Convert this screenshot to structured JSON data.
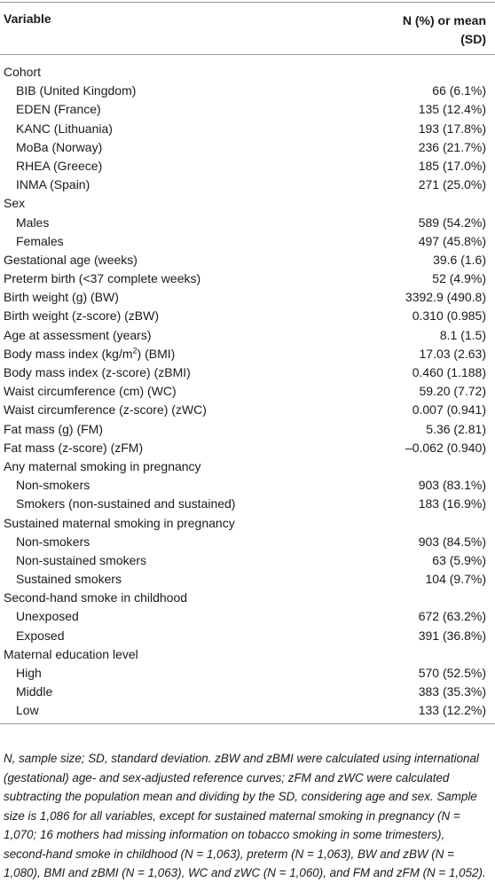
{
  "header": {
    "variable": "Variable",
    "value": "N (%) or mean (SD)"
  },
  "rows": [
    {
      "label": "Cohort",
      "rows": [
        {
          "label": "BIB (United Kingdom)",
          "value": "66 (6.1%)"
        },
        {
          "label": "EDEN (France)",
          "value": "135 (12.4%)"
        },
        {
          "label": "KANC (Lithuania)",
          "value": "193 (17.8%)"
        },
        {
          "label": "MoBa (Norway)",
          "value": "236 (21.7%)"
        },
        {
          "label": "RHEA (Greece)",
          "value": "185 (17.0%)"
        },
        {
          "label": "INMA (Spain)",
          "value": "271 (25.0%)"
        }
      ]
    },
    {
      "label": "Sex",
      "rows": [
        {
          "label": "Males",
          "value": "589 (54.2%)"
        },
        {
          "label": "Females",
          "value": "497 (45.8%)"
        }
      ]
    },
    {
      "label": "Gestational age (weeks)",
      "value": "39.6 (1.6)"
    },
    {
      "label": "Preterm birth (<37 complete weeks)",
      "value": "52 (4.9%)"
    },
    {
      "label": "Birth weight (g) (BW)",
      "value": "3392.9 (490.8)"
    },
    {
      "label": "Birth weight (z-score) (zBW)",
      "value": "0.310 (0.985)"
    },
    {
      "label": "Age at assessment (years)",
      "value": "8.1 (1.5)"
    },
    {
      "label": "Body mass index (kg/m",
      "sup": "2",
      "after": ") (BMI)",
      "value": "17.03 (2.63)"
    },
    {
      "label": "Body mass index (z-score) (zBMI)",
      "value": "0.460 (1.188)"
    },
    {
      "label": "Waist circumference (cm) (WC)",
      "value": "59.20 (7.72)"
    },
    {
      "label": "Waist circumference (z-score) (zWC)",
      "value": "0.007 (0.941)"
    },
    {
      "label": "Fat mass (g) (FM)",
      "value": "5.36 (2.81)"
    },
    {
      "label": "Fat mass (z-score) (zFM)",
      "value": "–0.062 (0.940)"
    },
    {
      "label": "Any maternal smoking in pregnancy",
      "rows": [
        {
          "label": "Non-smokers",
          "value": "903 (83.1%)"
        },
        {
          "label": "Smokers (non-sustained and sustained)",
          "value": "183 (16.9%)"
        }
      ]
    },
    {
      "label": "Sustained maternal smoking in pregnancy",
      "rows": [
        {
          "label": "Non-smokers",
          "value": "903 (84.5%)"
        },
        {
          "label": "Non-sustained smokers",
          "value": "63 (5.9%)"
        },
        {
          "label": "Sustained smokers",
          "value": "104 (9.7%)"
        }
      ]
    },
    {
      "label": "Second-hand smoke in childhood",
      "rows": [
        {
          "label": "Unexposed",
          "value": "672 (63.2%)"
        },
        {
          "label": "Exposed",
          "value": "391 (36.8%)"
        }
      ]
    },
    {
      "label": "Maternal education level",
      "rows": [
        {
          "label": "High",
          "value": "570 (52.5%)"
        },
        {
          "label": "Middle",
          "value": "383 (35.3%)"
        },
        {
          "label": "Low",
          "value": "133 (12.2%)"
        }
      ]
    }
  ],
  "footnote": "N, sample size; SD, standard deviation. zBW and zBMI were calculated using international (gestational) age- and sex-adjusted reference curves; zFM and zWC were calculated subtracting the population mean and dividing by the SD, considering age and sex. Sample size is 1,086 for all variables, except for sustained maternal smoking in pregnancy (N = 1,070; 16 mothers had missing information on tobacco smoking in some trimesters), second-hand smoke in childhood (N = 1,063), preterm (N = 1,063), BW and zBW (N = 1,080), BMI and zBMI (N = 1,063), WC and zWC (N = 1,060), and FM and zFM (N = 1,052)."
}
